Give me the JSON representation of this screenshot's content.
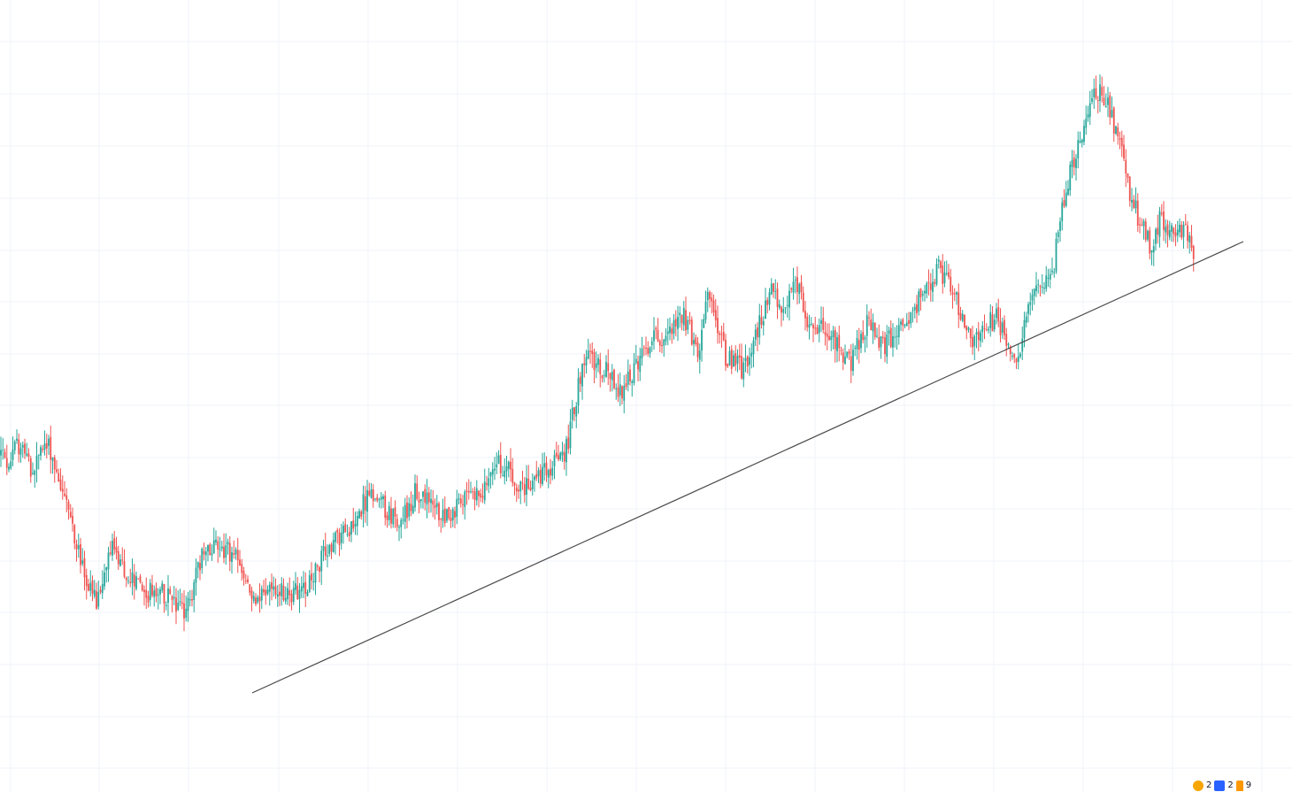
{
  "chart_data": {
    "type": "candlestick",
    "title": "",
    "xlabel": "",
    "ylabel": "",
    "ylim": [
      0,
      100
    ],
    "grid": true,
    "colors": {
      "up": "#26a69a",
      "down": "#ef5350",
      "grid": "#f0f3fa",
      "trendline": "#4a4a4a"
    },
    "path_keypoints": [
      [
        0,
        55
      ],
      [
        10,
        53
      ],
      [
        25,
        58
      ],
      [
        35,
        50
      ],
      [
        45,
        55
      ],
      [
        55,
        57
      ],
      [
        70,
        47
      ],
      [
        80,
        40
      ],
      [
        95,
        27
      ],
      [
        110,
        20
      ],
      [
        125,
        34
      ],
      [
        140,
        28
      ],
      [
        165,
        23
      ],
      [
        185,
        23
      ],
      [
        200,
        20
      ],
      [
        210,
        18
      ],
      [
        225,
        30
      ],
      [
        245,
        35
      ],
      [
        270,
        30
      ],
      [
        285,
        22
      ],
      [
        310,
        24
      ],
      [
        340,
        23
      ],
      [
        370,
        33
      ],
      [
        390,
        37
      ],
      [
        420,
        46
      ],
      [
        450,
        39
      ],
      [
        470,
        46
      ],
      [
        500,
        41
      ],
      [
        520,
        43
      ],
      [
        545,
        47
      ],
      [
        565,
        53
      ],
      [
        590,
        47
      ],
      [
        620,
        51
      ],
      [
        640,
        56
      ],
      [
        660,
        77
      ],
      [
        690,
        73
      ],
      [
        700,
        68
      ],
      [
        735,
        80
      ],
      [
        760,
        83
      ],
      [
        770,
        87
      ],
      [
        790,
        78
      ],
      [
        800,
        90
      ],
      [
        820,
        77
      ],
      [
        840,
        74
      ],
      [
        860,
        85
      ],
      [
        870,
        92
      ],
      [
        885,
        86
      ],
      [
        900,
        94
      ],
      [
        915,
        84
      ],
      [
        940,
        82
      ],
      [
        960,
        75
      ],
      [
        980,
        84
      ],
      [
        1000,
        80
      ],
      [
        1030,
        87
      ],
      [
        1060,
        97
      ],
      [
        1075,
        92
      ],
      [
        1100,
        80
      ],
      [
        1125,
        86
      ],
      [
        1150,
        77
      ],
      [
        1170,
        93
      ],
      [
        1190,
        97
      ],
      [
        1205,
        116
      ],
      [
        1230,
        134
      ],
      [
        1245,
        138
      ],
      [
        1260,
        129
      ],
      [
        1280,
        112
      ],
      [
        1300,
        102
      ],
      [
        1310,
        108
      ],
      [
        1330,
        106
      ],
      [
        1345,
        104
      ],
      [
        1350,
        97
      ]
    ],
    "trendline": {
      "start": [
        285,
        0
      ],
      "end": [
        1405,
        100
      ]
    },
    "candle_step": 2.25
  },
  "corner_badges": {
    "items": [
      {
        "icon": "alert-icon",
        "count": "2"
      },
      {
        "icon": "chart-icon",
        "count": "2"
      },
      {
        "icon": "flag-icon",
        "count": "9"
      }
    ]
  }
}
